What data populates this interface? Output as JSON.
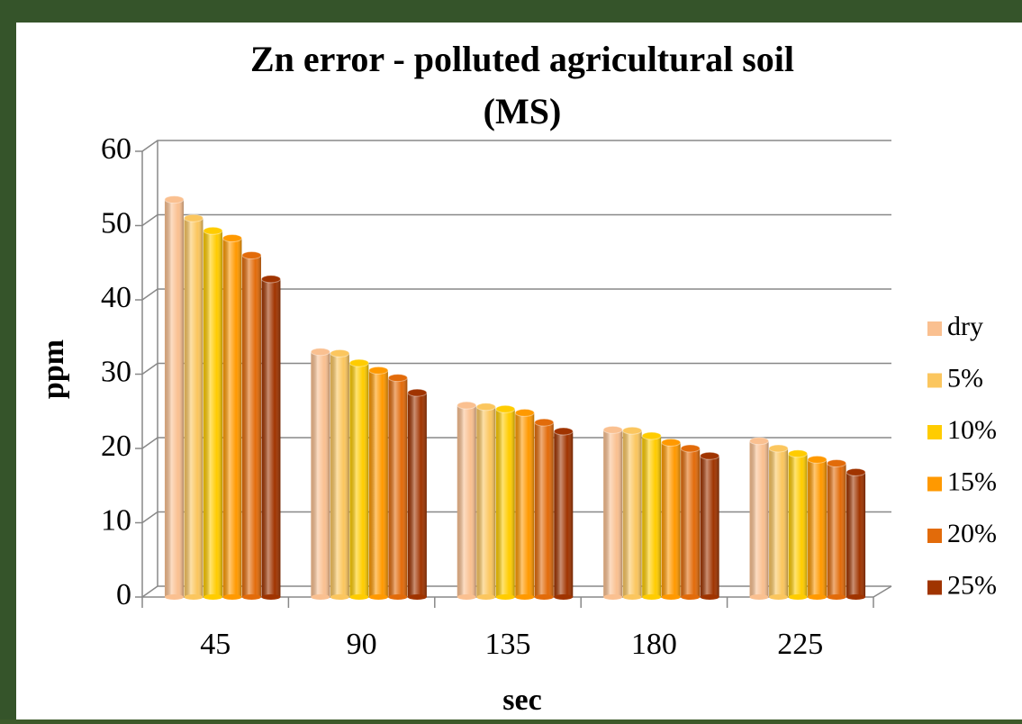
{
  "chart_data": {
    "type": "bar",
    "title": "Zn error - polluted agricultural soil (MS)",
    "x_label": "sec",
    "y_label": "ppm",
    "categories": [
      "45",
      "90",
      "135",
      "180",
      "225"
    ],
    "series": [
      {
        "name": "dry",
        "color": "#fac090",
        "values": [
          53.5,
          33,
          25.8,
          22.5,
          21
        ]
      },
      {
        "name": "5%",
        "color": "#fbc65e",
        "values": [
          51,
          32.8,
          25.6,
          22.4,
          20
        ]
      },
      {
        "name": "10%",
        "color": "#ffcc00",
        "values": [
          49.3,
          31.5,
          25.3,
          21.7,
          19.3
        ]
      },
      {
        "name": "15%",
        "color": "#ff9900",
        "values": [
          48.3,
          30.5,
          24.8,
          20.8,
          18.5
        ]
      },
      {
        "name": "20%",
        "color": "#e26b0a",
        "values": [
          46,
          29.5,
          23.5,
          20,
          18
        ]
      },
      {
        "name": "25%",
        "color": "#a03400",
        "values": [
          42.8,
          27.5,
          22.3,
          19,
          16.8
        ]
      }
    ],
    "ylim": [
      0,
      60
    ],
    "yticks": [
      0,
      10,
      20,
      30,
      40,
      50,
      60
    ],
    "grid": true,
    "legend": "right"
  }
}
